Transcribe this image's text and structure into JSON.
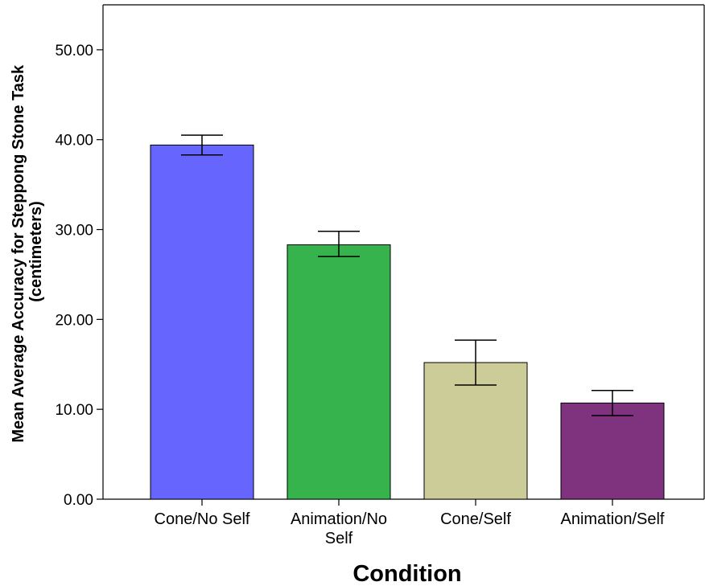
{
  "chart_data": {
    "type": "bar",
    "title": "",
    "xlabel": "Condition",
    "ylabel_lines": [
      "Mean Average Accuracy for Steppong Stone Task",
      "(centimeters)"
    ],
    "ylim": [
      0,
      55
    ],
    "yticks": [
      0,
      10,
      20,
      30,
      40,
      50
    ],
    "ytick_labels": [
      "0.00",
      "10.00",
      "20.00",
      "30.00",
      "40.00",
      "50.00"
    ],
    "grid": false,
    "legend": "none",
    "categories": [
      [
        "Cone/No Self"
      ],
      [
        "Animation/No",
        "Self"
      ],
      [
        "Cone/Self"
      ],
      [
        "Animation/Self"
      ]
    ],
    "values": [
      39.4,
      28.3,
      15.2,
      10.7
    ],
    "error_low": [
      38.3,
      27.0,
      12.7,
      9.3
    ],
    "error_high": [
      40.5,
      29.8,
      17.7,
      12.1
    ],
    "colors": [
      "#6666ff",
      "#36b34d",
      "#cccc99",
      "#7f337f"
    ]
  }
}
